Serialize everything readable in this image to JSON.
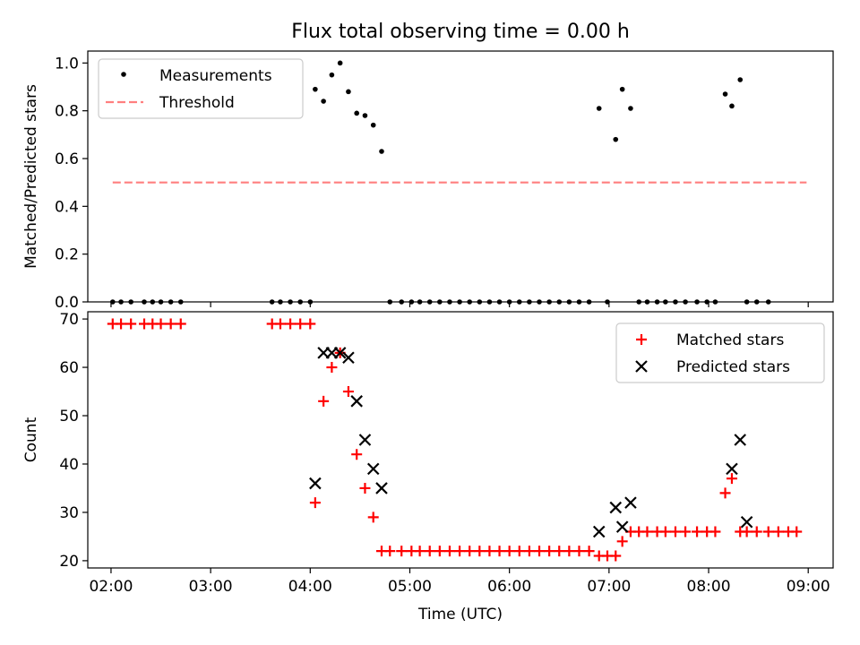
{
  "chart_data": [
    {
      "type": "scatter",
      "title": "Flux total observing time = 0.00 h",
      "xlabel": "",
      "ylabel": "Matched/Predicted stars",
      "ylim": [
        0.0,
        1.05
      ],
      "yticks": [
        0.0,
        0.2,
        0.4,
        0.6,
        0.8,
        1.0
      ],
      "ytick_labels": [
        "0.0",
        "0.2",
        "0.4",
        "0.6",
        "0.8",
        "1.0"
      ],
      "legend_placement": "top-left",
      "grid": false,
      "series": [
        {
          "name": "Measurements",
          "kind": "scatter",
          "marker": "dot",
          "color": "#000000",
          "x": [
            "02:01",
            "02:06",
            "02:12",
            "02:20",
            "02:25",
            "02:30",
            "02:36",
            "02:42",
            "03:37",
            "03:42",
            "03:48",
            "03:54",
            "04:00",
            "04:03",
            "04:08",
            "04:13",
            "04:18",
            "04:23",
            "04:28",
            "04:33",
            "04:38",
            "04:43",
            "04:48",
            "04:55",
            "05:01",
            "05:06",
            "05:12",
            "05:18",
            "05:24",
            "05:30",
            "05:36",
            "05:42",
            "05:48",
            "05:54",
            "06:00",
            "06:06",
            "06:12",
            "06:18",
            "06:24",
            "06:30",
            "06:36",
            "06:42",
            "06:48",
            "06:54",
            "06:59",
            "07:04",
            "07:08",
            "07:13",
            "07:18",
            "07:23",
            "07:29",
            "07:34",
            "07:40",
            "07:46",
            "07:53",
            "07:59",
            "08:04",
            "08:10",
            "08:14",
            "08:19",
            "08:23",
            "08:29",
            "08:36"
          ],
          "y": [
            0,
            0,
            0,
            0,
            0,
            0,
            0,
            0,
            0,
            0,
            0,
            0,
            0,
            0.89,
            0.84,
            0.95,
            1.0,
            0.88,
            0.79,
            0.78,
            0.74,
            0.63,
            0,
            0,
            0,
            0,
            0,
            0,
            0,
            0,
            0,
            0,
            0,
            0,
            0,
            0,
            0,
            0,
            0,
            0,
            0,
            0,
            0,
            0.81,
            0,
            0.68,
            0.89,
            0.81,
            0,
            0,
            0,
            0,
            0,
            0,
            0,
            0,
            0,
            0.87,
            0.82,
            0.93,
            0,
            0,
            0
          ]
        },
        {
          "name": "Threshold",
          "kind": "line",
          "style": "dashed",
          "color": "#ff7f7f",
          "x": [
            "02:01",
            "08:59"
          ],
          "y": [
            0.5,
            0.5
          ]
        }
      ]
    },
    {
      "type": "scatter",
      "title": "",
      "xlabel": "Time (UTC)",
      "ylabel": "Count",
      "ylim": [
        18.5,
        71.5
      ],
      "yticks": [
        20,
        30,
        40,
        50,
        60,
        70
      ],
      "ytick_labels": [
        "20",
        "30",
        "40",
        "50",
        "60",
        "70"
      ],
      "x_axis": "time of day (UTC)",
      "xticks": [
        "02:00",
        "03:00",
        "04:00",
        "05:00",
        "06:00",
        "07:00",
        "08:00",
        "09:00"
      ],
      "xtick_labels": [
        "02:00",
        "03:00",
        "04:00",
        "05:00",
        "06:00",
        "07:00",
        "08:00",
        "09:00"
      ],
      "xlim": [
        "01:46",
        "09:15"
      ],
      "legend_placement": "top-right",
      "grid": false,
      "series": [
        {
          "name": "Matched stars",
          "kind": "scatter",
          "marker": "plus",
          "color": "#ff0000",
          "x": [
            "02:01",
            "02:06",
            "02:12",
            "02:20",
            "02:25",
            "02:30",
            "02:36",
            "02:42",
            "03:37",
            "03:42",
            "03:48",
            "03:54",
            "04:00",
            "04:03",
            "04:08",
            "04:13",
            "04:18",
            "04:23",
            "04:28",
            "04:33",
            "04:38",
            "04:43",
            "04:48",
            "04:55",
            "05:01",
            "05:06",
            "05:12",
            "05:18",
            "05:24",
            "05:30",
            "05:36",
            "05:42",
            "05:48",
            "05:54",
            "06:00",
            "06:06",
            "06:12",
            "06:18",
            "06:24",
            "06:30",
            "06:36",
            "06:42",
            "06:48",
            "06:54",
            "06:59",
            "07:04",
            "07:08",
            "07:13",
            "07:18",
            "07:23",
            "07:29",
            "07:34",
            "07:40",
            "07:46",
            "07:53",
            "07:59",
            "08:04",
            "08:10",
            "08:14",
            "08:19",
            "08:23",
            "08:29",
            "08:36",
            "08:42",
            "08:48",
            "08:53"
          ],
          "y": [
            69,
            69,
            69,
            69,
            69,
            69,
            69,
            69,
            69,
            69,
            69,
            69,
            69,
            32,
            53,
            60,
            63,
            55,
            42,
            35,
            29,
            22,
            22,
            22,
            22,
            22,
            22,
            22,
            22,
            22,
            22,
            22,
            22,
            22,
            22,
            22,
            22,
            22,
            22,
            22,
            22,
            22,
            22,
            21,
            21,
            21,
            24,
            26,
            26,
            26,
            26,
            26,
            26,
            26,
            26,
            26,
            26,
            34,
            37,
            26,
            26,
            26,
            26,
            26,
            26,
            26
          ]
        },
        {
          "name": "Predicted stars",
          "kind": "scatter",
          "marker": "x",
          "color": "#000000",
          "x": [
            "04:03",
            "04:08",
            "04:13",
            "04:18",
            "04:23",
            "04:28",
            "04:33",
            "04:38",
            "04:43",
            "06:54",
            "07:04",
            "07:08",
            "07:13",
            "08:14",
            "08:19",
            "08:23"
          ],
          "y": [
            36,
            63,
            63,
            63,
            62,
            53,
            45,
            39,
            35,
            26,
            31,
            27,
            32,
            39,
            45,
            28
          ]
        }
      ]
    }
  ]
}
